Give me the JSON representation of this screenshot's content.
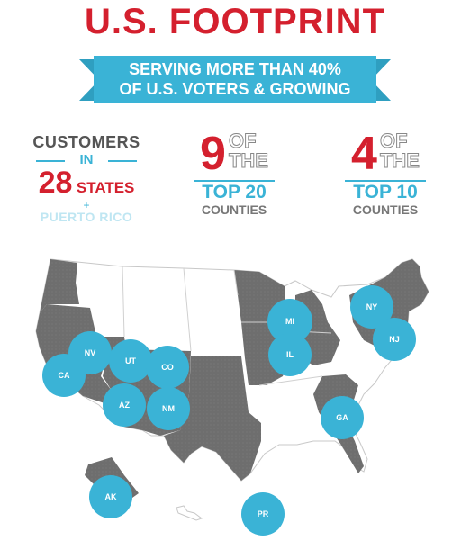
{
  "title": "U.S. FOOTPRINT",
  "banner": {
    "line1": "SERVING MORE THAN 40%",
    "line2": "OF U.S. VOTERS & GROWING"
  },
  "stats": {
    "customers": {
      "line1": "CUSTOMERS",
      "in": "IN",
      "number": "28",
      "states": "STATES",
      "plus": "+",
      "extra": "PUERTO RICO"
    },
    "top20": {
      "number": "9",
      "of": "OF",
      "the": "THE",
      "label": "TOP 20",
      "sub": "COUNTIES"
    },
    "top10": {
      "number": "4",
      "of": "OF",
      "the": "THE",
      "label": "TOP 10",
      "sub": "COUNTIES"
    }
  },
  "map_states": [
    "MI",
    "NY",
    "NJ",
    "NV",
    "UT",
    "CO",
    "CA",
    "IL",
    "AZ",
    "NM",
    "GA",
    "AK",
    "PR"
  ],
  "colors": {
    "accent_red": "#d4202e",
    "accent_blue": "#3ab3d6",
    "state_dark": "#6e6e6e",
    "state_light": "#ffffff"
  }
}
